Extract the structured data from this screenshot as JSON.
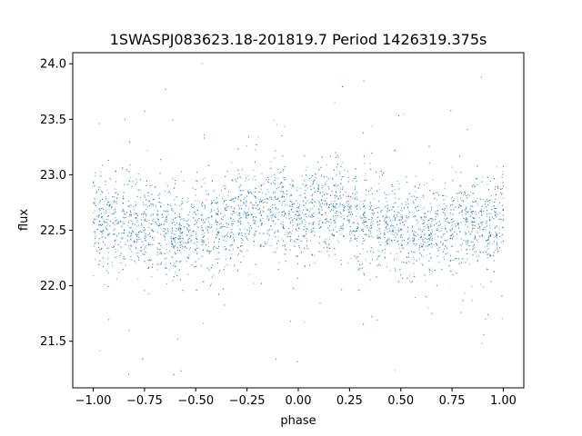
{
  "chart_data": {
    "type": "scatter",
    "title": "1SWASPJ083623.18-201819.7 Period 1426319.375s",
    "xlabel": "phase",
    "ylabel": "flux",
    "xlim": [
      -1.1,
      1.1
    ],
    "ylim": [
      21.08,
      24.1
    ],
    "x_ticks": [
      "−1.00",
      "−0.75",
      "−0.50",
      "−0.25",
      "0.00",
      "0.25",
      "0.50",
      "0.75",
      "1.00"
    ],
    "y_ticks": [
      "21.5",
      "22.0",
      "22.5",
      "23.0",
      "23.5",
      "24.0"
    ],
    "grid": false,
    "marker_color": "#1f77b4",
    "series": [
      {
        "x_range": [
          -1.0,
          1.0
        ],
        "point_count_approx": 12000,
        "symmetric_about_phase": 0,
        "mean_flux_profile": [
          {
            "phase": 0.0,
            "flux": 22.58
          },
          {
            "phase": 0.1,
            "flux": 22.72
          },
          {
            "phase": 0.2,
            "flux": 22.68
          },
          {
            "phase": 0.3,
            "flux": 22.62
          },
          {
            "phase": 0.4,
            "flux": 22.55
          },
          {
            "phase": 0.5,
            "flux": 22.5
          },
          {
            "phase": 0.6,
            "flux": 22.45
          },
          {
            "phase": 0.7,
            "flux": 22.5
          },
          {
            "phase": 0.8,
            "flux": 22.55
          },
          {
            "phase": 0.9,
            "flux": 22.58
          },
          {
            "phase": 1.0,
            "flux": 22.6
          }
        ],
        "core_spread_sigma": 0.2,
        "min_flux": 21.2,
        "max_flux": 24.0
      }
    ]
  }
}
